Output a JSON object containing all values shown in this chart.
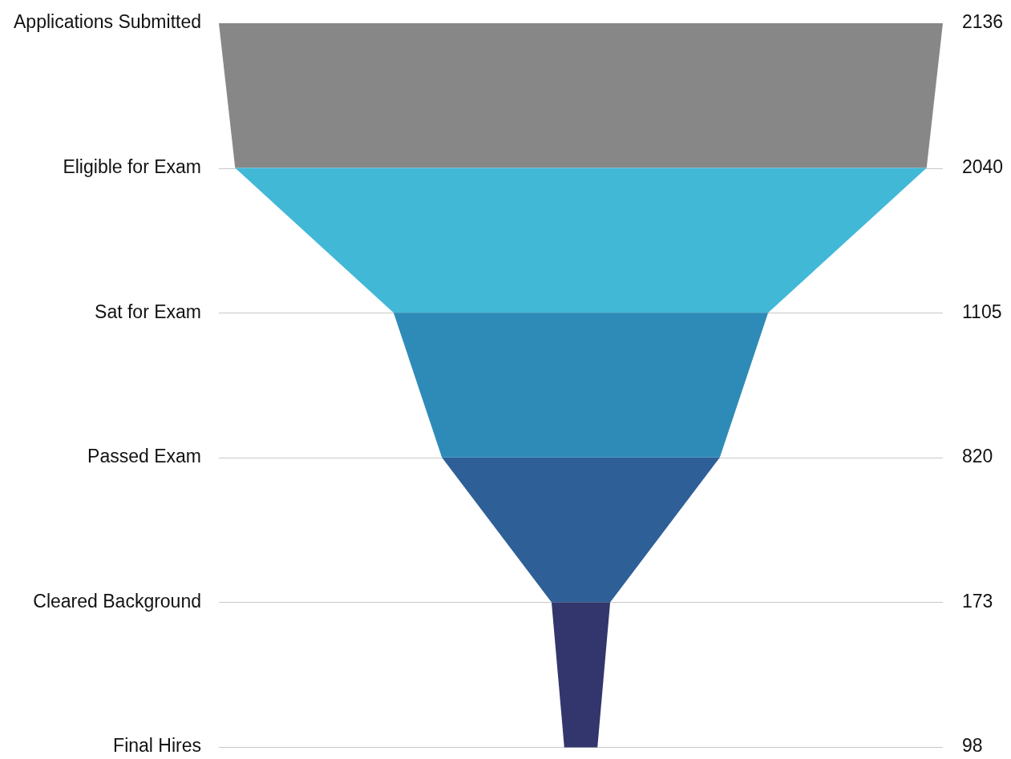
{
  "chart_data": {
    "type": "other",
    "categories": [
      "Applications Submitted",
      "Eligible for Exam",
      "Sat for Exam",
      "Passed Exam",
      "Cleared Background",
      "Final Hires"
    ],
    "values": [
      2136,
      2040,
      1105,
      820,
      173,
      98
    ],
    "colors": [
      "#878787",
      "#42b8d7",
      "#2e8bb8",
      "#2e5f97",
      "#32366d",
      "#32366d"
    ],
    "data_labels": true
  }
}
